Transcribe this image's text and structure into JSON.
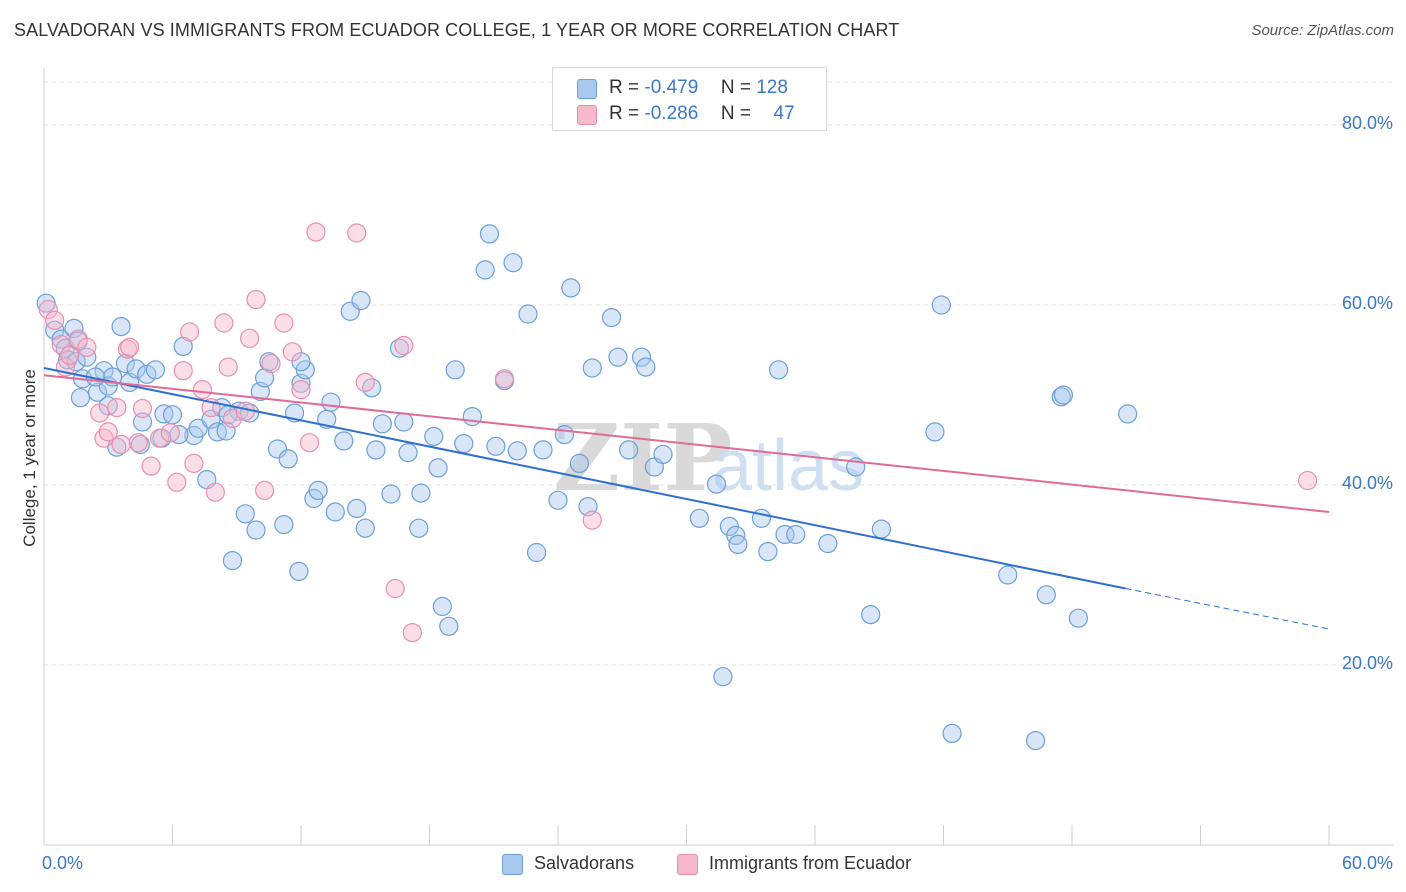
{
  "title": "SALVADORAN VS IMMIGRANTS FROM ECUADOR COLLEGE, 1 YEAR OR MORE CORRELATION CHART",
  "source": "Source: ZipAtlas.com",
  "watermark": {
    "zip": "ZIP",
    "atlas": "atlas"
  },
  "legend": {
    "rows": [
      {
        "r_label": "R =",
        "r_value": "-0.479",
        "n_label": "N =",
        "n_value": "128"
      },
      {
        "r_label": "R =",
        "r_value": "-0.286",
        "n_label": "N =",
        "n_value": "47"
      }
    ]
  },
  "colors": {
    "blue_fill": "#a9c8ee",
    "blue_stroke": "#6d9fd8",
    "blue_line": "#2f6fd0",
    "pink_fill": "#f6b9cc",
    "pink_stroke": "#e88fae",
    "pink_line": "#e06b98",
    "tick_text": "#3a78c8",
    "grid": "#e3e3e3"
  },
  "chart_data": {
    "type": "scatter",
    "title": "SALVADORAN VS IMMIGRANTS FROM ECUADOR COLLEGE, 1 YEAR OR MORE CORRELATION CHART",
    "xlabel": "",
    "ylabel": "College, 1 year or more",
    "xlim": [
      0,
      60
    ],
    "ylim": [
      0,
      85
    ],
    "x_tick_labels": {
      "left": "0.0%",
      "right": "60.0%"
    },
    "y_ticks": [
      {
        "value": 20,
        "label": "20.0%"
      },
      {
        "value": 40,
        "label": "40.0%"
      },
      {
        "value": 60,
        "label": "60.0%"
      },
      {
        "value": 80,
        "label": "80.0%"
      }
    ],
    "grid": true,
    "legend_position": "bottom",
    "series": [
      {
        "name": "Salvadorans",
        "r": -0.479,
        "n": 128,
        "trend": {
          "x_start": 0,
          "y_start": 53.0,
          "x_end": 50.5,
          "y_end": 28.5,
          "dash_to_x": 60,
          "dash_to_y": 24.0
        },
        "points": [
          [
            0.1,
            60.2
          ],
          [
            0.5,
            57.2
          ],
          [
            0.8,
            56.2
          ],
          [
            1.0,
            55.2
          ],
          [
            1.1,
            53.9
          ],
          [
            1.4,
            57.4
          ],
          [
            1.5,
            53.7
          ],
          [
            1.6,
            56.0
          ],
          [
            1.7,
            49.7
          ],
          [
            1.8,
            51.8
          ],
          [
            2.0,
            54.2
          ],
          [
            2.5,
            50.3
          ],
          [
            2.8,
            52.7
          ],
          [
            3.0,
            51.0
          ],
          [
            3.2,
            52.0
          ],
          [
            3.4,
            44.2
          ],
          [
            3.6,
            57.6
          ],
          [
            3.8,
            53.5
          ],
          [
            4.0,
            51.4
          ],
          [
            4.3,
            52.9
          ],
          [
            4.6,
            47.0
          ],
          [
            4.8,
            52.3
          ],
          [
            5.2,
            52.8
          ],
          [
            5.5,
            45.2
          ],
          [
            5.6,
            47.9
          ],
          [
            6.0,
            47.8
          ],
          [
            6.5,
            55.4
          ],
          [
            7.0,
            45.5
          ],
          [
            7.2,
            46.3
          ],
          [
            7.6,
            40.6
          ],
          [
            7.8,
            47.3
          ],
          [
            8.1,
            45.9
          ],
          [
            8.3,
            48.6
          ],
          [
            8.5,
            46.0
          ],
          [
            8.8,
            31.6
          ],
          [
            9.1,
            48.2
          ],
          [
            9.4,
            36.8
          ],
          [
            9.6,
            48.0
          ],
          [
            9.9,
            35.0
          ],
          [
            10.1,
            50.4
          ],
          [
            10.3,
            51.9
          ],
          [
            10.5,
            53.7
          ],
          [
            10.9,
            44.0
          ],
          [
            11.2,
            35.6
          ],
          [
            11.4,
            42.9
          ],
          [
            11.7,
            48.0
          ],
          [
            11.9,
            30.4
          ],
          [
            12.0,
            51.3
          ],
          [
            12.2,
            52.8
          ],
          [
            12.6,
            38.5
          ],
          [
            12.8,
            39.4
          ],
          [
            13.2,
            47.3
          ],
          [
            13.4,
            49.2
          ],
          [
            13.6,
            37.0
          ],
          [
            14.0,
            44.9
          ],
          [
            14.3,
            59.3
          ],
          [
            14.6,
            37.4
          ],
          [
            14.8,
            60.5
          ],
          [
            15.0,
            35.2
          ],
          [
            15.3,
            50.8
          ],
          [
            15.5,
            43.9
          ],
          [
            15.8,
            46.8
          ],
          [
            16.2,
            39.0
          ],
          [
            16.6,
            55.2
          ],
          [
            16.8,
            47.0
          ],
          [
            17.0,
            43.6
          ],
          [
            17.5,
            35.2
          ],
          [
            17.6,
            39.1
          ],
          [
            18.2,
            45.4
          ],
          [
            18.4,
            41.9
          ],
          [
            18.6,
            26.5
          ],
          [
            18.9,
            24.3
          ],
          [
            19.2,
            52.8
          ],
          [
            19.6,
            44.6
          ],
          [
            20.0,
            47.6
          ],
          [
            20.6,
            63.9
          ],
          [
            20.8,
            67.9
          ],
          [
            21.1,
            44.3
          ],
          [
            21.5,
            51.6
          ],
          [
            21.9,
            64.7
          ],
          [
            22.1,
            43.8
          ],
          [
            22.6,
            59.0
          ],
          [
            23.0,
            32.5
          ],
          [
            23.3,
            43.9
          ],
          [
            24.0,
            38.3
          ],
          [
            24.3,
            45.6
          ],
          [
            24.6,
            61.9
          ],
          [
            25.0,
            42.4
          ],
          [
            25.4,
            37.6
          ],
          [
            25.6,
            53.0
          ],
          [
            26.5,
            58.6
          ],
          [
            26.8,
            54.2
          ],
          [
            27.3,
            43.9
          ],
          [
            27.9,
            54.2
          ],
          [
            28.1,
            53.1
          ],
          [
            28.5,
            42.0
          ],
          [
            28.9,
            43.4
          ],
          [
            30.6,
            36.3
          ],
          [
            31.4,
            40.1
          ],
          [
            31.7,
            18.7
          ],
          [
            32.0,
            35.4
          ],
          [
            32.3,
            34.4
          ],
          [
            32.4,
            33.4
          ],
          [
            33.5,
            36.3
          ],
          [
            33.8,
            32.6
          ],
          [
            34.3,
            52.8
          ],
          [
            34.6,
            34.5
          ],
          [
            35.1,
            34.5
          ],
          [
            36.6,
            33.5
          ],
          [
            37.9,
            42.0
          ],
          [
            38.6,
            25.6
          ],
          [
            39.1,
            35.1
          ],
          [
            41.6,
            45.9
          ],
          [
            41.9,
            60.0
          ],
          [
            42.4,
            12.4
          ],
          [
            45.0,
            30.0
          ],
          [
            46.3,
            11.6
          ],
          [
            46.8,
            27.8
          ],
          [
            47.5,
            49.8
          ],
          [
            47.6,
            50.0
          ],
          [
            48.3,
            25.2
          ],
          [
            50.6,
            47.9
          ],
          [
            12.0,
            53.7
          ],
          [
            8.6,
            47.8
          ],
          [
            6.3,
            45.6
          ],
          [
            4.5,
            44.5
          ],
          [
            3.0,
            48.8
          ],
          [
            2.4,
            52.0
          ]
        ]
      },
      {
        "name": "Immigrants from Ecuador",
        "r": -0.286,
        "n": 47,
        "trend": {
          "x_start": 0,
          "y_start": 52.2,
          "x_end": 60,
          "y_end": 37.0
        },
        "points": [
          [
            0.2,
            59.5
          ],
          [
            0.5,
            58.3
          ],
          [
            0.8,
            55.6
          ],
          [
            1.0,
            53.1
          ],
          [
            1.2,
            54.4
          ],
          [
            1.6,
            56.2
          ],
          [
            2.0,
            55.3
          ],
          [
            2.6,
            48.0
          ],
          [
            2.8,
            45.2
          ],
          [
            3.0,
            45.9
          ],
          [
            3.4,
            48.6
          ],
          [
            3.9,
            55.1
          ],
          [
            4.0,
            55.3
          ],
          [
            4.4,
            44.7
          ],
          [
            4.6,
            48.5
          ],
          [
            5.0,
            42.1
          ],
          [
            5.4,
            45.2
          ],
          [
            5.9,
            45.8
          ],
          [
            6.2,
            40.3
          ],
          [
            6.5,
            52.7
          ],
          [
            6.8,
            57.0
          ],
          [
            7.0,
            42.4
          ],
          [
            7.4,
            50.6
          ],
          [
            7.8,
            48.6
          ],
          [
            8.0,
            39.2
          ],
          [
            8.4,
            58.0
          ],
          [
            8.6,
            53.1
          ],
          [
            8.8,
            47.4
          ],
          [
            9.4,
            48.2
          ],
          [
            9.6,
            56.3
          ],
          [
            9.9,
            60.6
          ],
          [
            10.3,
            39.4
          ],
          [
            10.6,
            53.5
          ],
          [
            11.2,
            58.0
          ],
          [
            11.6,
            54.8
          ],
          [
            12.0,
            50.6
          ],
          [
            12.4,
            44.7
          ],
          [
            12.7,
            68.1
          ],
          [
            14.6,
            68.0
          ],
          [
            15.0,
            51.4
          ],
          [
            16.4,
            28.5
          ],
          [
            16.8,
            55.5
          ],
          [
            17.2,
            23.6
          ],
          [
            21.5,
            51.8
          ],
          [
            25.6,
            36.1
          ],
          [
            59.0,
            40.5
          ],
          [
            3.6,
            44.5
          ]
        ]
      }
    ]
  }
}
